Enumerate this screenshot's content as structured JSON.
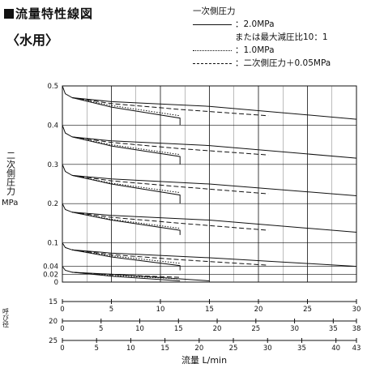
{
  "header": {
    "title": "流量特性線図",
    "subtitle": "〈水用〉"
  },
  "legend": {
    "heading": "一次側圧力",
    "items": [
      {
        "style": "solid",
        "label": "：2.0MPa"
      },
      {
        "style": "none",
        "label": "または最大減圧比10：1"
      },
      {
        "style": "dotted",
        "label": "：1.0MPa"
      },
      {
        "style": "dashed",
        "label": "：二次側圧力＋0.05MPa"
      }
    ]
  },
  "axis_labels": {
    "y": "二次側圧力",
    "y_unit": "MPa",
    "size_label": "呼び径",
    "x": "流量 L/min"
  },
  "chart_data": {
    "type": "line",
    "y_ticks": [
      "0.5",
      "0.4",
      "0.3",
      "0.2",
      "0.1",
      "0.04",
      "0.02",
      "0"
    ],
    "y_tick_values": [
      0.5,
      0.4,
      0.3,
      0.2,
      0.1,
      0.04,
      0.02,
      0
    ],
    "xlim_size15": [
      0,
      30
    ],
    "grid": true,
    "flow_scales": [
      {
        "size": "15",
        "max": 30,
        "ticks": [
          0,
          5,
          10,
          15,
          20,
          25,
          30
        ]
      },
      {
        "size": "20",
        "max": 38,
        "ticks": [
          0,
          5,
          10,
          15,
          20,
          25,
          30,
          35,
          38
        ]
      },
      {
        "size": "25",
        "max": 43,
        "ticks": [
          0,
          5,
          10,
          15,
          20,
          25,
          30,
          35,
          40,
          43
        ]
      }
    ],
    "series": [
      {
        "style": "solid",
        "points": [
          [
            0,
            0.5
          ],
          [
            0.3,
            0.48
          ],
          [
            1,
            0.47
          ],
          [
            5,
            0.46
          ],
          [
            15,
            0.448
          ],
          [
            30,
            0.415
          ]
        ]
      },
      {
        "style": "solid",
        "points": [
          [
            1,
            0.47
          ],
          [
            5,
            0.446
          ],
          [
            12,
            0.418
          ],
          [
            12,
            0.4
          ]
        ]
      },
      {
        "style": "dotted",
        "points": [
          [
            1,
            0.47
          ],
          [
            5,
            0.45
          ],
          [
            12,
            0.424
          ]
        ]
      },
      {
        "style": "dashed",
        "points": [
          [
            1,
            0.47
          ],
          [
            5,
            0.455
          ],
          [
            12,
            0.44
          ],
          [
            21,
            0.424
          ]
        ]
      },
      {
        "style": "solid",
        "points": [
          [
            0,
            0.4
          ],
          [
            0.3,
            0.38
          ],
          [
            1,
            0.37
          ],
          [
            5,
            0.36
          ],
          [
            15,
            0.348
          ],
          [
            30,
            0.316
          ]
        ]
      },
      {
        "style": "solid",
        "points": [
          [
            1,
            0.37
          ],
          [
            5,
            0.347
          ],
          [
            12,
            0.32
          ],
          [
            12,
            0.3
          ]
        ]
      },
      {
        "style": "dotted",
        "points": [
          [
            1,
            0.37
          ],
          [
            5,
            0.35
          ],
          [
            12,
            0.325
          ]
        ]
      },
      {
        "style": "dashed",
        "points": [
          [
            1,
            0.37
          ],
          [
            5,
            0.356
          ],
          [
            12,
            0.34
          ],
          [
            21,
            0.324
          ]
        ]
      },
      {
        "style": "solid",
        "points": [
          [
            0,
            0.3
          ],
          [
            0.3,
            0.282
          ],
          [
            1,
            0.272
          ],
          [
            5,
            0.263
          ],
          [
            15,
            0.25
          ],
          [
            30,
            0.22
          ]
        ]
      },
      {
        "style": "solid",
        "points": [
          [
            1,
            0.272
          ],
          [
            5,
            0.25
          ],
          [
            12,
            0.222
          ],
          [
            12,
            0.2
          ]
        ]
      },
      {
        "style": "dotted",
        "points": [
          [
            1,
            0.272
          ],
          [
            5,
            0.252
          ],
          [
            12,
            0.228
          ]
        ]
      },
      {
        "style": "dashed",
        "points": [
          [
            1,
            0.272
          ],
          [
            5,
            0.258
          ],
          [
            12,
            0.243
          ],
          [
            21,
            0.225
          ]
        ]
      },
      {
        "style": "solid",
        "points": [
          [
            0,
            0.2
          ],
          [
            0.3,
            0.185
          ],
          [
            1,
            0.178
          ],
          [
            5,
            0.17
          ],
          [
            15,
            0.158
          ],
          [
            30,
            0.127
          ]
        ]
      },
      {
        "style": "solid",
        "points": [
          [
            1,
            0.178
          ],
          [
            5,
            0.158
          ],
          [
            12,
            0.132
          ],
          [
            12,
            0.12
          ]
        ]
      },
      {
        "style": "dotted",
        "points": [
          [
            1,
            0.178
          ],
          [
            5,
            0.16
          ],
          [
            12,
            0.137
          ]
        ]
      },
      {
        "style": "dashed",
        "points": [
          [
            1,
            0.178
          ],
          [
            5,
            0.165
          ],
          [
            12,
            0.15
          ],
          [
            21,
            0.132
          ]
        ]
      },
      {
        "style": "solid",
        "points": [
          [
            0,
            0.1
          ],
          [
            0.3,
            0.088
          ],
          [
            1,
            0.082
          ],
          [
            5,
            0.074
          ],
          [
            15,
            0.062
          ],
          [
            30,
            0.04
          ]
        ]
      },
      {
        "style": "solid",
        "points": [
          [
            1,
            0.082
          ],
          [
            5,
            0.064
          ],
          [
            12,
            0.042
          ],
          [
            12,
            0.03
          ]
        ]
      },
      {
        "style": "dotted",
        "points": [
          [
            1,
            0.082
          ],
          [
            5,
            0.067
          ],
          [
            12,
            0.048
          ]
        ]
      },
      {
        "style": "dashed",
        "points": [
          [
            1,
            0.082
          ],
          [
            5,
            0.07
          ],
          [
            12,
            0.057
          ],
          [
            21,
            0.043
          ]
        ]
      },
      {
        "style": "solid",
        "points": [
          [
            0,
            0.04
          ],
          [
            0.3,
            0.03
          ],
          [
            1,
            0.025
          ],
          [
            5,
            0.02
          ],
          [
            15,
            0.003
          ]
        ]
      },
      {
        "style": "solid",
        "points": [
          [
            1,
            0.025
          ],
          [
            5,
            0.015
          ],
          [
            12,
            0.003
          ]
        ]
      },
      {
        "style": "dotted",
        "points": [
          [
            1,
            0.025
          ],
          [
            5,
            0.017
          ],
          [
            12,
            0.008
          ]
        ]
      },
      {
        "style": "dashed",
        "points": [
          [
            1,
            0.025
          ],
          [
            5,
            0.019
          ],
          [
            12,
            0.012
          ]
        ]
      }
    ]
  }
}
